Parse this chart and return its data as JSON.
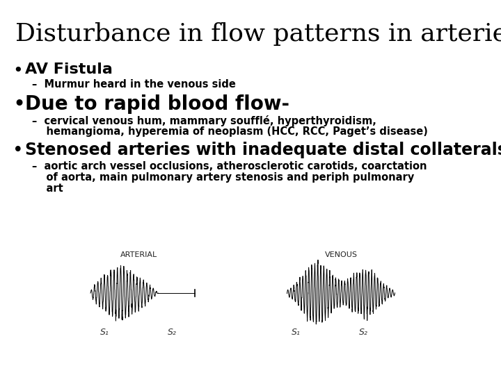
{
  "title": "Disturbance in flow patterns in arteries",
  "title_fontsize": 26,
  "title_font": "serif",
  "background_color": "#ffffff",
  "text_color": "#000000",
  "bullet1": "AV Fistula",
  "bullet1_fontsize": 16,
  "sub1": "–  Murmur heard in the venous side",
  "sub1_fontsize": 10.5,
  "bullet2": "Due to rapid blood flow-",
  "bullet2_fontsize": 20,
  "sub2a": "–  cervical venous hum, mammary soufflé, hyperthyroidism,",
  "sub2b": "    hemangioma, hyperemia of neoplasm (HCC, RCC, Paget’s disease)",
  "sub2_fontsize": 10.5,
  "bullet3": "Stenosed arteries with inadequate distal collaterals",
  "bullet3_fontsize": 17,
  "sub3a": "–  aortic arch vessel occlusions, atherosclerotic carotids, coarctation",
  "sub3b": "    of aorta, main pulmonary artery stenosis and periph pulmonary",
  "sub3c": "    art",
  "sub3_fontsize": 10.5,
  "label_arterial": "ARTERIAL",
  "label_venous": "VENOUS",
  "label_s1": "S₁",
  "label_s2": "S₂"
}
